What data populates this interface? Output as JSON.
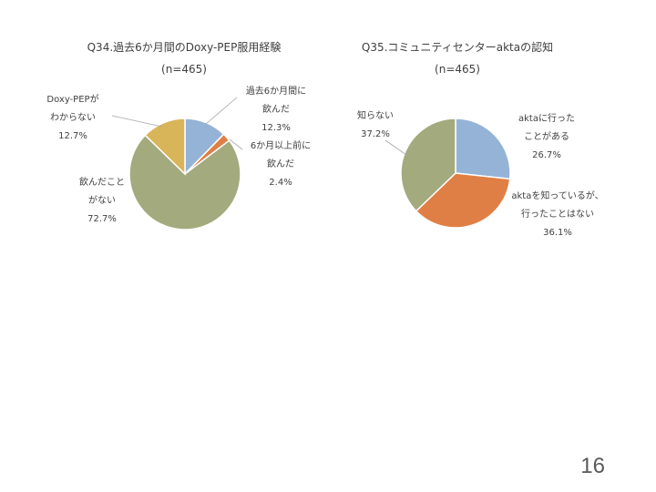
{
  "page_number": "16",
  "colors": {
    "blue": "#95B3D7",
    "orange": "#E07F45",
    "olive": "#A3AA7E",
    "gold": "#D9B55A",
    "leader": "#A6A6A6"
  },
  "chart_data": [
    {
      "type": "pie",
      "title": "Q34.過去6か月間のDoxy-PEP服用経験",
      "subtitle": "(n=465)",
      "unit": "%",
      "slices": [
        {
          "label_lines": [
            "過去6か月間に",
            "飲んだ"
          ],
          "value": 12.3,
          "value_label": "12.3%",
          "color": "#95B3D7"
        },
        {
          "label_lines": [
            "6か月以上前に",
            "飲んだ"
          ],
          "value": 2.4,
          "value_label": "2.4%",
          "color": "#E07F45"
        },
        {
          "label_lines": [
            "飲んだこと",
            "がない"
          ],
          "value": 72.7,
          "value_label": "72.7%",
          "color": "#A3AA7E"
        },
        {
          "label_lines": [
            "Doxy-PEPが",
            "わからない"
          ],
          "value": 12.7,
          "value_label": "12.7%",
          "color": "#D9B55A"
        }
      ]
    },
    {
      "type": "pie",
      "title": "Q35.コミュニティセンターaktaの認知",
      "subtitle": "(n=465)",
      "unit": "%",
      "slices": [
        {
          "label_lines": [
            "aktaに行った",
            "ことがある"
          ],
          "value": 26.7,
          "value_label": "26.7%",
          "color": "#95B3D7"
        },
        {
          "label_lines": [
            "aktaを知っているが、",
            "行ったことはない"
          ],
          "value": 36.1,
          "value_label": "36.1%",
          "color": "#E07F45"
        },
        {
          "label_lines": [
            "知らない"
          ],
          "value": 37.2,
          "value_label": "37.2%",
          "color": "#A3AA7E"
        }
      ]
    }
  ]
}
